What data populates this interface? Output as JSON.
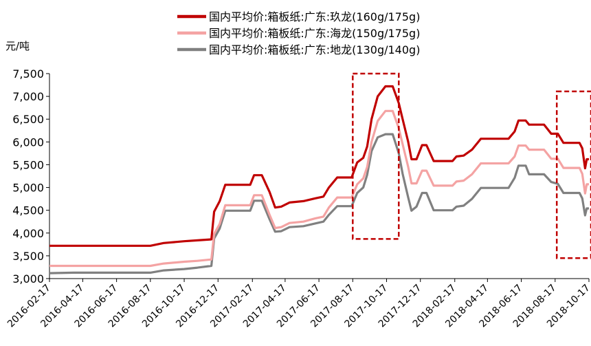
{
  "chart_data": {
    "type": "line",
    "unit_label": "元/吨",
    "ylim": [
      3000,
      7500
    ],
    "y_ticks": [
      "3,000",
      "3,500",
      "4,000",
      "4,500",
      "5,000",
      "5,500",
      "6,000",
      "6,500",
      "7,000",
      "7,500"
    ],
    "x_ticks": [
      "2016-02-17",
      "2016-04-17",
      "2016-06-17",
      "2016-08-17",
      "2016-10-17",
      "2016-12-17",
      "2017-02-17",
      "2017-04-17",
      "2017-06-17",
      "2017-08-17",
      "2017-10-17",
      "2017-12-17",
      "2018-02-17",
      "2018-04-17",
      "2018-06-17",
      "2018-08-17",
      "2018-10-17"
    ],
    "xlim": [
      "2016-02-17",
      "2018-10-17"
    ],
    "grid": false,
    "legend_position": "top",
    "series": [
      {
        "name": "国内平均价:箱板纸:广东:玖龙(160g/175g)",
        "color": "#C00000",
        "points": [
          [
            "2016-02-17",
            3720
          ],
          [
            "2016-08-17",
            3720
          ],
          [
            "2016-09-10",
            3780
          ],
          [
            "2016-10-17",
            3820
          ],
          [
            "2016-11-10",
            3840
          ],
          [
            "2016-12-05",
            3860
          ],
          [
            "2016-12-10",
            4470
          ],
          [
            "2016-12-20",
            4700
          ],
          [
            "2016-12-30",
            5060
          ],
          [
            "2017-02-13",
            5060
          ],
          [
            "2017-02-20",
            5270
          ],
          [
            "2017-03-06",
            5270
          ],
          [
            "2017-03-20",
            4900
          ],
          [
            "2017-03-30",
            4560
          ],
          [
            "2017-04-10",
            4580
          ],
          [
            "2017-04-25",
            4670
          ],
          [
            "2017-05-20",
            4700
          ],
          [
            "2017-06-10",
            4760
          ],
          [
            "2017-06-25",
            4800
          ],
          [
            "2017-07-05",
            5000
          ],
          [
            "2017-07-20",
            5220
          ],
          [
            "2017-08-15",
            5220
          ],
          [
            "2017-08-25",
            5550
          ],
          [
            "2017-09-05",
            5650
          ],
          [
            "2017-09-12",
            5900
          ],
          [
            "2017-09-20",
            6500
          ],
          [
            "2017-10-01",
            7000
          ],
          [
            "2017-10-15",
            7220
          ],
          [
            "2017-10-28",
            7220
          ],
          [
            "2017-11-08",
            6850
          ],
          [
            "2017-11-15",
            6500
          ],
          [
            "2017-11-25",
            6000
          ],
          [
            "2017-12-01",
            5620
          ],
          [
            "2017-12-10",
            5620
          ],
          [
            "2017-12-20",
            5930
          ],
          [
            "2017-12-28",
            5930
          ],
          [
            "2018-01-10",
            5580
          ],
          [
            "2018-02-13",
            5580
          ],
          [
            "2018-02-20",
            5680
          ],
          [
            "2018-03-05",
            5700
          ],
          [
            "2018-03-20",
            5830
          ],
          [
            "2018-04-05",
            6070
          ],
          [
            "2018-05-25",
            6070
          ],
          [
            "2018-06-05",
            6230
          ],
          [
            "2018-06-12",
            6470
          ],
          [
            "2018-06-25",
            6470
          ],
          [
            "2018-07-01",
            6380
          ],
          [
            "2018-07-28",
            6380
          ],
          [
            "2018-08-10",
            6180
          ],
          [
            "2018-08-22",
            6180
          ],
          [
            "2018-09-01",
            5980
          ],
          [
            "2018-09-30",
            5980
          ],
          [
            "2018-10-05",
            5860
          ],
          [
            "2018-10-10",
            5420
          ],
          [
            "2018-10-13",
            5620
          ],
          [
            "2018-10-17",
            5620
          ]
        ]
      },
      {
        "name": "国内平均价:箱板纸:广东:海龙(150g/175g)",
        "color": "#F4A3A3",
        "points": [
          [
            "2016-02-17",
            3280
          ],
          [
            "2016-08-17",
            3280
          ],
          [
            "2016-09-10",
            3330
          ],
          [
            "2016-10-17",
            3370
          ],
          [
            "2016-11-10",
            3390
          ],
          [
            "2016-12-05",
            3420
          ],
          [
            "2016-12-10",
            3980
          ],
          [
            "2016-12-20",
            4200
          ],
          [
            "2016-12-30",
            4610
          ],
          [
            "2017-02-13",
            4610
          ],
          [
            "2017-02-20",
            4830
          ],
          [
            "2017-03-06",
            4830
          ],
          [
            "2017-03-20",
            4400
          ],
          [
            "2017-03-30",
            4110
          ],
          [
            "2017-04-10",
            4130
          ],
          [
            "2017-04-25",
            4220
          ],
          [
            "2017-05-20",
            4250
          ],
          [
            "2017-06-10",
            4320
          ],
          [
            "2017-06-25",
            4360
          ],
          [
            "2017-07-05",
            4560
          ],
          [
            "2017-07-20",
            4780
          ],
          [
            "2017-08-15",
            4780
          ],
          [
            "2017-08-25",
            5070
          ],
          [
            "2017-09-05",
            5200
          ],
          [
            "2017-09-12",
            5450
          ],
          [
            "2017-09-20",
            6000
          ],
          [
            "2017-10-01",
            6460
          ],
          [
            "2017-10-15",
            6680
          ],
          [
            "2017-10-28",
            6680
          ],
          [
            "2017-11-08",
            6300
          ],
          [
            "2017-11-15",
            5950
          ],
          [
            "2017-11-25",
            5450
          ],
          [
            "2017-12-01",
            5090
          ],
          [
            "2017-12-10",
            5090
          ],
          [
            "2017-12-20",
            5370
          ],
          [
            "2017-12-28",
            5370
          ],
          [
            "2018-01-10",
            5040
          ],
          [
            "2018-02-13",
            5040
          ],
          [
            "2018-02-20",
            5130
          ],
          [
            "2018-03-05",
            5150
          ],
          [
            "2018-03-20",
            5290
          ],
          [
            "2018-04-05",
            5530
          ],
          [
            "2018-05-25",
            5530
          ],
          [
            "2018-06-05",
            5680
          ],
          [
            "2018-06-12",
            5920
          ],
          [
            "2018-06-25",
            5920
          ],
          [
            "2018-07-01",
            5830
          ],
          [
            "2018-07-28",
            5830
          ],
          [
            "2018-08-10",
            5630
          ],
          [
            "2018-08-22",
            5630
          ],
          [
            "2018-09-01",
            5430
          ],
          [
            "2018-09-30",
            5430
          ],
          [
            "2018-10-05",
            5300
          ],
          [
            "2018-10-10",
            4870
          ],
          [
            "2018-10-13",
            5070
          ],
          [
            "2018-10-17",
            5070
          ]
        ]
      },
      {
        "name": "国内平均价:箱板纸:广东:地龙(130g/140g)",
        "color": "#808080",
        "points": [
          [
            "2016-02-17",
            3120
          ],
          [
            "2016-04-01",
            3130
          ],
          [
            "2016-08-17",
            3130
          ],
          [
            "2016-09-10",
            3180
          ],
          [
            "2016-10-17",
            3210
          ],
          [
            "2016-11-10",
            3240
          ],
          [
            "2016-12-05",
            3280
          ],
          [
            "2016-12-10",
            3880
          ],
          [
            "2016-12-20",
            4100
          ],
          [
            "2016-12-30",
            4490
          ],
          [
            "2017-02-13",
            4490
          ],
          [
            "2017-02-20",
            4710
          ],
          [
            "2017-03-06",
            4710
          ],
          [
            "2017-03-20",
            4300
          ],
          [
            "2017-03-30",
            4030
          ],
          [
            "2017-04-10",
            4040
          ],
          [
            "2017-04-25",
            4130
          ],
          [
            "2017-05-20",
            4150
          ],
          [
            "2017-06-10",
            4210
          ],
          [
            "2017-06-25",
            4250
          ],
          [
            "2017-07-05",
            4400
          ],
          [
            "2017-07-20",
            4590
          ],
          [
            "2017-08-15",
            4590
          ],
          [
            "2017-08-25",
            4880
          ],
          [
            "2017-09-05",
            5000
          ],
          [
            "2017-09-12",
            5280
          ],
          [
            "2017-09-20",
            5800
          ],
          [
            "2017-10-01",
            6100
          ],
          [
            "2017-10-15",
            6170
          ],
          [
            "2017-10-28",
            6170
          ],
          [
            "2017-11-08",
            5750
          ],
          [
            "2017-11-15",
            5300
          ],
          [
            "2017-11-25",
            4780
          ],
          [
            "2017-12-01",
            4490
          ],
          [
            "2017-12-10",
            4580
          ],
          [
            "2017-12-20",
            4880
          ],
          [
            "2017-12-28",
            4880
          ],
          [
            "2018-01-10",
            4500
          ],
          [
            "2018-02-13",
            4500
          ],
          [
            "2018-02-20",
            4580
          ],
          [
            "2018-03-05",
            4600
          ],
          [
            "2018-03-20",
            4750
          ],
          [
            "2018-04-05",
            4990
          ],
          [
            "2018-05-25",
            4990
          ],
          [
            "2018-06-05",
            5210
          ],
          [
            "2018-06-12",
            5480
          ],
          [
            "2018-06-25",
            5480
          ],
          [
            "2018-07-01",
            5290
          ],
          [
            "2018-07-28",
            5290
          ],
          [
            "2018-08-10",
            5120
          ],
          [
            "2018-08-22",
            5080
          ],
          [
            "2018-09-01",
            4880
          ],
          [
            "2018-09-30",
            4880
          ],
          [
            "2018-10-05",
            4760
          ],
          [
            "2018-10-10",
            4390
          ],
          [
            "2018-10-13",
            4540
          ],
          [
            "2018-10-17",
            4540
          ]
        ]
      }
    ],
    "highlight_boxes": [
      {
        "x_start": "2017-08-17",
        "x_end": "2017-11-08",
        "y_start": 3870,
        "y_end": 7500,
        "color": "#C00000",
        "style": "dashed"
      },
      {
        "x_start": "2018-08-20",
        "x_end": "2018-10-17",
        "y_start": 3450,
        "y_end": 7110,
        "color": "#C00000",
        "style": "dashed"
      }
    ]
  }
}
